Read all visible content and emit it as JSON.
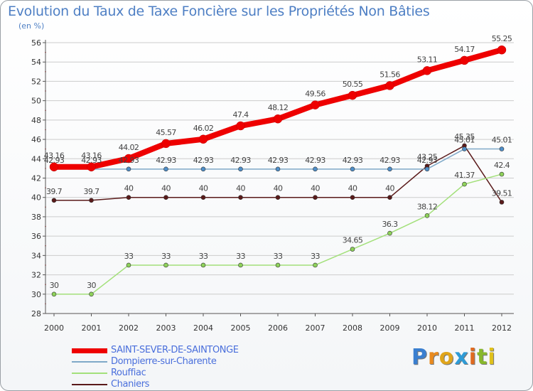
{
  "title": "Evolution du Taux de Taxe Foncière sur les Propriétés Non Bâties",
  "unit_label": "(en %)",
  "colors": {
    "title": "#4e7fc4",
    "grid": "#cccccc",
    "axis": "#555555"
  },
  "logo": {
    "letters": [
      "P",
      "r",
      "o",
      "x",
      "i",
      "t",
      "i"
    ],
    "colors": [
      "#3a7fd0",
      "#e98a1e",
      "#e0a51b",
      "#2e9bd6",
      "#e06a20",
      "#88b82c",
      "#e0c11b"
    ]
  },
  "chart_data": {
    "type": "line",
    "title": "Evolution du Taux de Taxe Foncière sur les Propriétés Non Bâties",
    "ylabel": "(en %)",
    "xlabel": "",
    "ylim": [
      28,
      56
    ],
    "ytick_step": 2,
    "yticks": [
      "28",
      "30",
      "32",
      "34",
      "36",
      "38",
      "40",
      "42",
      "44",
      "46",
      "48",
      "50",
      "52",
      "54",
      "56"
    ],
    "categories": [
      "2000",
      "2001",
      "2002",
      "2003",
      "2004",
      "2005",
      "2006",
      "2007",
      "2008",
      "2009",
      "2010",
      "2011",
      "2012"
    ],
    "series": [
      {
        "name": "Chaniers",
        "color": "#5a1a1a",
        "marker": "#5a1a1a",
        "width": 1.5,
        "values": [
          39.7,
          39.7,
          40,
          40,
          40,
          40,
          40,
          40,
          40,
          40,
          43.25,
          45.35,
          39.51
        ],
        "labels": [
          "39.7",
          "39.7",
          "40",
          "40",
          "40",
          "40",
          "40",
          "40",
          "40",
          "40",
          "43.25",
          "45.35",
          "39.51"
        ]
      },
      {
        "name": "Rouffiac",
        "color": "#a3e07a",
        "marker": "#8ed25a",
        "width": 1.5,
        "values": [
          30,
          30,
          33,
          33,
          33,
          33,
          33,
          33,
          34.65,
          36.3,
          38.12,
          41.37,
          42.4
        ],
        "labels": [
          "30",
          "30",
          "33",
          "33",
          "33",
          "33",
          "33",
          "33",
          "34.65",
          "36.3",
          "38.12",
          "41.37",
          "42.4"
        ]
      },
      {
        "name": "Dompierre-sur-Charente",
        "color": "#7fa9c8",
        "marker": "#4f8fc9",
        "width": 1.5,
        "values": [
          42.93,
          42.93,
          42.93,
          42.93,
          42.93,
          42.93,
          42.93,
          42.93,
          42.93,
          42.93,
          42.93,
          45.01,
          45.01
        ],
        "labels": [
          "42.93",
          "42.93",
          "42.93",
          "42.93",
          "42.93",
          "42.93",
          "42.93",
          "42.93",
          "42.93",
          "42.93",
          "42.93",
          "45.01",
          "45.01"
        ]
      },
      {
        "name": "SAINT-SEVER-DE-SAINTONGE",
        "color": "#ee0000",
        "marker": "#ee0000",
        "width": 8,
        "values": [
          43.16,
          43.16,
          44.02,
          45.57,
          46.02,
          47.4,
          48.12,
          49.56,
          50.55,
          51.56,
          53.11,
          54.17,
          55.25
        ],
        "labels": [
          "43.16",
          "43.16",
          "44.02",
          "45.57",
          "46.02",
          "47.4",
          "48.12",
          "49.56",
          "50.55",
          "51.56",
          "53.11",
          "54.17",
          "55.25"
        ]
      }
    ],
    "legend": [
      {
        "name": "SAINT-SEVER-DE-SAINTONGE",
        "color": "#ee0000",
        "thick": true
      },
      {
        "name": "Dompierre-sur-Charente",
        "color": "#7fa9c8",
        "thick": false
      },
      {
        "name": "Rouffiac",
        "color": "#a3e07a",
        "thick": false
      },
      {
        "name": "Chaniers",
        "color": "#5a1a1a",
        "thick": false
      }
    ],
    "legend_position": "bottom-left"
  }
}
